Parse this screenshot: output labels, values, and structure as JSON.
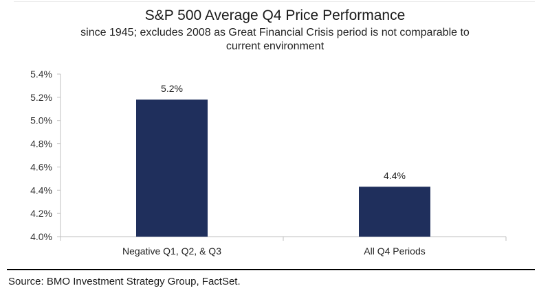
{
  "chart_data": {
    "type": "bar",
    "title": "S&P 500 Average Q4 Price Performance",
    "subtitle": "since 1945; excludes 2008 as Great Financial Crisis period is not comparable to current environment",
    "categories": [
      "Negative Q1, Q2, & Q3",
      "All Q4 Periods"
    ],
    "values": [
      5.18,
      4.43
    ],
    "data_labels": [
      "5.2%",
      "4.4%"
    ],
    "ylim": [
      4.0,
      5.4
    ],
    "yticks": [
      4.0,
      4.2,
      4.4,
      4.6,
      4.8,
      5.0,
      5.2,
      5.4
    ],
    "ytick_labels": [
      "4.0%",
      "4.2%",
      "4.4%",
      "4.6%",
      "4.8%",
      "5.0%",
      "5.2%",
      "5.4%"
    ],
    "xlabel": "",
    "ylabel": "",
    "grid": false,
    "legend": "none",
    "bar_color": "#1f2f5c"
  },
  "source": "Source: BMO Investment Strategy Group, FactSet."
}
